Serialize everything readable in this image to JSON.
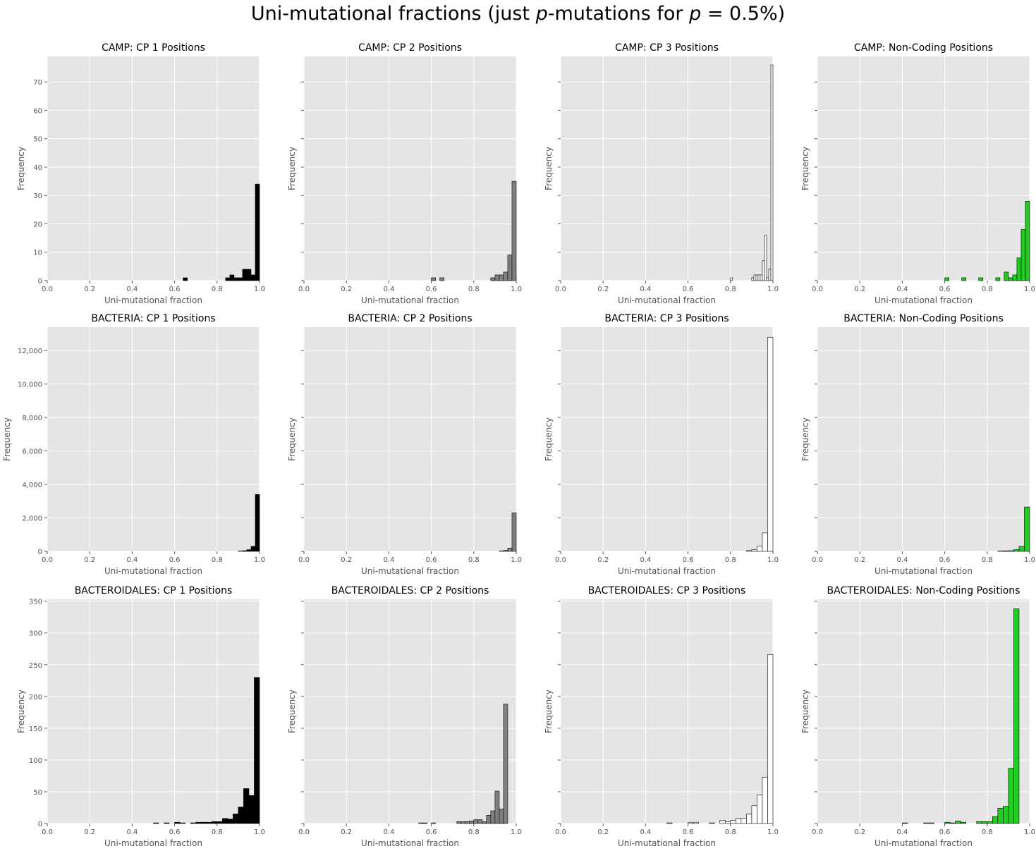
{
  "suptitle": {
    "part1": "Uni-mutational fractions (just ",
    "p1": "p",
    "part2": "-mutations for ",
    "p2": "p",
    "part3": " = 0.5%)"
  },
  "chart_data": [
    {
      "type": "bar",
      "title": "CAMP: CP 1 Positions",
      "xlabel": "Uni-mutational fraction",
      "ylabel": "Frequency",
      "xlim": [
        0,
        1
      ],
      "ylim": [
        0,
        79
      ],
      "xticks": [
        "0.0",
        "0.2",
        "0.4",
        "0.6",
        "0.8",
        "1.0"
      ],
      "yticks": [
        0,
        10,
        20,
        30,
        40,
        50,
        60,
        70
      ],
      "ytick_labels": [
        "0",
        "10",
        "20",
        "30",
        "40",
        "50",
        "60",
        "70"
      ],
      "color": "#000000",
      "bin_width": 0.02,
      "bins": [
        [
          0.64,
          1
        ],
        [
          0.84,
          1
        ],
        [
          0.86,
          2
        ],
        [
          0.88,
          1
        ],
        [
          0.9,
          1
        ],
        [
          0.92,
          4
        ],
        [
          0.94,
          4
        ],
        [
          0.96,
          2
        ],
        [
          0.98,
          34
        ]
      ],
      "grid": true
    },
    {
      "type": "bar",
      "title": "CAMP: CP 2 Positions",
      "xlabel": "Uni-mutational fraction",
      "ylabel": "Frequency",
      "xlim": [
        0,
        1
      ],
      "ylim": [
        0,
        79
      ],
      "xticks": [
        "0.0",
        "0.2",
        "0.4",
        "0.6",
        "0.8",
        "1.0"
      ],
      "yticks": [
        0,
        10,
        20,
        30,
        40,
        50,
        60,
        70
      ],
      "ytick_labels": [],
      "color": "#808080",
      "bin_width": 0.02,
      "bins": [
        [
          0.6,
          1
        ],
        [
          0.64,
          1
        ],
        [
          0.88,
          1
        ],
        [
          0.9,
          2
        ],
        [
          0.92,
          2
        ],
        [
          0.94,
          3
        ],
        [
          0.96,
          9
        ],
        [
          0.98,
          35
        ]
      ],
      "grid": true
    },
    {
      "type": "bar",
      "title": "CAMP: CP 3 Positions",
      "xlabel": "Uni-mutational fraction",
      "ylabel": "Frequency",
      "xlim": [
        0,
        1
      ],
      "ylim": [
        0,
        79
      ],
      "xticks": [
        "0.0",
        "0.2",
        "0.4",
        "0.6",
        "0.8",
        "1.0"
      ],
      "yticks": [
        0,
        10,
        20,
        30,
        40,
        50,
        60,
        70
      ],
      "ytick_labels": [],
      "color": "#ffffff",
      "bin_width": 0.01,
      "bins": [
        [
          0.8,
          1
        ],
        [
          0.9,
          1
        ],
        [
          0.91,
          2
        ],
        [
          0.92,
          2
        ],
        [
          0.93,
          2
        ],
        [
          0.94,
          2
        ],
        [
          0.95,
          7
        ],
        [
          0.96,
          16
        ],
        [
          0.97,
          1
        ],
        [
          0.98,
          4
        ],
        [
          0.99,
          76
        ]
      ],
      "grid": true
    },
    {
      "type": "bar",
      "title": "CAMP: Non-Coding Positions",
      "xlabel": "Uni-mutational fraction",
      "ylabel": "Frequency",
      "xlim": [
        0,
        1
      ],
      "ylim": [
        0,
        79
      ],
      "xticks": [
        "0.0",
        "0.2",
        "0.4",
        "0.6",
        "0.8",
        "1.0"
      ],
      "yticks": [
        0,
        10,
        20,
        30,
        40,
        50,
        60,
        70
      ],
      "ytick_labels": [],
      "color": "#22cc22",
      "bin_width": 0.02,
      "bins": [
        [
          0.6,
          1
        ],
        [
          0.68,
          1
        ],
        [
          0.76,
          1
        ],
        [
          0.84,
          1
        ],
        [
          0.88,
          3
        ],
        [
          0.9,
          1
        ],
        [
          0.92,
          2
        ],
        [
          0.94,
          8
        ],
        [
          0.96,
          18
        ],
        [
          0.98,
          28
        ]
      ],
      "grid": true
    },
    {
      "type": "bar",
      "title": "BACTERIA: CP 1 Positions",
      "xlabel": "Uni-mutational fraction",
      "ylabel": "Frequency",
      "xlim": [
        0,
        1
      ],
      "ylim": [
        0,
        13400
      ],
      "xticks": [
        "0.0",
        "0.2",
        "0.4",
        "0.6",
        "0.8",
        "1.0"
      ],
      "yticks": [
        0,
        2000,
        4000,
        6000,
        8000,
        10000,
        12000
      ],
      "ytick_labels": [
        "0",
        "2,000",
        "4,000",
        "6,000",
        "8,000",
        "10,000",
        "12,000"
      ],
      "color": "#000000",
      "bin_width": 0.02,
      "bins": [
        [
          0.9,
          20
        ],
        [
          0.92,
          40
        ],
        [
          0.94,
          100
        ],
        [
          0.96,
          300
        ],
        [
          0.98,
          3400
        ]
      ],
      "grid": true
    },
    {
      "type": "bar",
      "title": "BACTERIA: CP 2 Positions",
      "xlabel": "Uni-mutational fraction",
      "ylabel": "Frequency",
      "xlim": [
        0,
        1
      ],
      "ylim": [
        0,
        13400
      ],
      "xticks": [
        "0.0",
        "0.2",
        "0.4",
        "0.6",
        "0.8",
        "1.0"
      ],
      "yticks": [
        0,
        2000,
        4000,
        6000,
        8000,
        10000,
        12000
      ],
      "ytick_labels": [],
      "color": "#808080",
      "bin_width": 0.02,
      "bins": [
        [
          0.92,
          20
        ],
        [
          0.94,
          60
        ],
        [
          0.96,
          200
        ],
        [
          0.98,
          2300
        ]
      ],
      "grid": true
    },
    {
      "type": "bar",
      "title": "BACTERIA: CP 3 Positions",
      "xlabel": "Uni-mutational fraction",
      "ylabel": "Frequency",
      "xlim": [
        0,
        1
      ],
      "ylim": [
        0,
        13400
      ],
      "xticks": [
        "0.0",
        "0.2",
        "0.4",
        "0.6",
        "0.8",
        "1.0"
      ],
      "yticks": [
        0,
        2000,
        4000,
        6000,
        8000,
        10000,
        12000
      ],
      "ytick_labels": [],
      "color": "#ffffff",
      "bin_width": 0.025,
      "bins": [
        [
          0.875,
          50
        ],
        [
          0.9,
          100
        ],
        [
          0.925,
          300
        ],
        [
          0.95,
          1100
        ],
        [
          0.975,
          12800
        ]
      ],
      "grid": true
    },
    {
      "type": "bar",
      "title": "BACTERIA: Non-Coding Positions",
      "xlabel": "Uni-mutational fraction",
      "ylabel": "Frequency",
      "xlim": [
        0,
        1
      ],
      "ylim": [
        0,
        13400
      ],
      "xticks": [
        "0.0",
        "0.2",
        "0.4",
        "0.6",
        "0.8",
        "1.0"
      ],
      "yticks": [
        0,
        2000,
        4000,
        6000,
        8000,
        10000,
        12000
      ],
      "ytick_labels": [],
      "color": "#22cc22",
      "bin_width": 0.025,
      "bins": [
        [
          0.85,
          20
        ],
        [
          0.875,
          30
        ],
        [
          0.9,
          40
        ],
        [
          0.925,
          100
        ],
        [
          0.95,
          300
        ],
        [
          0.975,
          2650
        ]
      ],
      "grid": true
    },
    {
      "type": "bar",
      "title": "BACTEROIDALES: CP 1 Positions",
      "xlabel": "Uni-mutational fraction",
      "ylabel": "Frequency",
      "xlim": [
        0,
        1
      ],
      "ylim": [
        0,
        353
      ],
      "xticks": [
        "0.0",
        "0.2",
        "0.4",
        "0.6",
        "0.8",
        "1.0"
      ],
      "yticks": [
        0,
        50,
        100,
        150,
        200,
        250,
        300,
        350
      ],
      "ytick_labels": [
        "0",
        "50",
        "100",
        "150",
        "200",
        "250",
        "300",
        "350"
      ],
      "color": "#000000",
      "bin_width": 0.025,
      "bins": [
        [
          0.5,
          1
        ],
        [
          0.55,
          1
        ],
        [
          0.6,
          2
        ],
        [
          0.625,
          1
        ],
        [
          0.675,
          1
        ],
        [
          0.7,
          2
        ],
        [
          0.725,
          2
        ],
        [
          0.75,
          2
        ],
        [
          0.775,
          3
        ],
        [
          0.8,
          3
        ],
        [
          0.825,
          8
        ],
        [
          0.85,
          7
        ],
        [
          0.875,
          15
        ],
        [
          0.9,
          26
        ],
        [
          0.925,
          55
        ],
        [
          0.95,
          44
        ],
        [
          0.975,
          230
        ]
      ],
      "grid": true
    },
    {
      "type": "bar",
      "title": "BACTEROIDALES: CP 2 Positions",
      "xlabel": "Uni-mutational fraction",
      "ylabel": "Frequency",
      "xlim": [
        0,
        1
      ],
      "ylim": [
        0,
        353
      ],
      "xticks": [
        "0.0",
        "0.2",
        "0.4",
        "0.6",
        "0.8",
        "1.0"
      ],
      "yticks": [
        0,
        50,
        100,
        150,
        200,
        250,
        300,
        350
      ],
      "ytick_labels": [],
      "color": "#808080",
      "bin_width": 0.02,
      "bins": [
        [
          0.54,
          1
        ],
        [
          0.56,
          1
        ],
        [
          0.6,
          1
        ],
        [
          0.72,
          3
        ],
        [
          0.74,
          3
        ],
        [
          0.76,
          3
        ],
        [
          0.78,
          4
        ],
        [
          0.8,
          6
        ],
        [
          0.82,
          6
        ],
        [
          0.84,
          3
        ],
        [
          0.86,
          13
        ],
        [
          0.88,
          20
        ],
        [
          0.9,
          51
        ],
        [
          0.92,
          23
        ],
        [
          0.94,
          188
        ],
        [
          0.96,
          0
        ],
        [
          0.98,
          0
        ]
      ],
      "grid": true
    },
    {
      "type": "bar",
      "title": "BACTEROIDALES: CP 3 Positions",
      "xlabel": "Uni-mutational fraction",
      "ylabel": "Frequency",
      "xlim": [
        0,
        1
      ],
      "ylim": [
        0,
        353
      ],
      "xticks": [
        "0.0",
        "0.2",
        "0.4",
        "0.6",
        "0.8",
        "1.0"
      ],
      "yticks": [
        0,
        50,
        100,
        150,
        200,
        250,
        300,
        350
      ],
      "ytick_labels": [],
      "color": "#ffffff",
      "bin_width": 0.025,
      "bins": [
        [
          0.5,
          1
        ],
        [
          0.6,
          2
        ],
        [
          0.625,
          2
        ],
        [
          0.7,
          1
        ],
        [
          0.75,
          5
        ],
        [
          0.775,
          3
        ],
        [
          0.8,
          5
        ],
        [
          0.825,
          8
        ],
        [
          0.85,
          8
        ],
        [
          0.875,
          15
        ],
        [
          0.9,
          28
        ],
        [
          0.925,
          45
        ],
        [
          0.95,
          73
        ],
        [
          0.975,
          266
        ]
      ],
      "grid": true
    },
    {
      "type": "bar",
      "title": "BACTEROIDALES: Non-Coding Positions",
      "xlabel": "Uni-mutational fraction",
      "ylabel": "Frequency",
      "xlim": [
        0,
        1
      ],
      "ylim": [
        0,
        353
      ],
      "xticks": [
        "0.0",
        "0.2",
        "0.4",
        "0.6",
        "0.8",
        "1.0"
      ],
      "yticks": [
        0,
        50,
        100,
        150,
        200,
        250,
        300,
        350
      ],
      "ytick_labels": [],
      "color": "#22cc22",
      "bin_width": 0.025,
      "bins": [
        [
          0.4,
          1
        ],
        [
          0.5,
          1
        ],
        [
          0.525,
          1
        ],
        [
          0.6,
          2
        ],
        [
          0.625,
          1
        ],
        [
          0.65,
          4
        ],
        [
          0.675,
          2
        ],
        [
          0.75,
          3
        ],
        [
          0.775,
          3
        ],
        [
          0.8,
          3
        ],
        [
          0.825,
          11
        ],
        [
          0.85,
          24
        ],
        [
          0.875,
          27
        ],
        [
          0.9,
          87
        ],
        [
          0.925,
          338
        ],
        [
          0.95,
          0
        ],
        [
          0.975,
          0
        ]
      ],
      "grid": true
    }
  ]
}
